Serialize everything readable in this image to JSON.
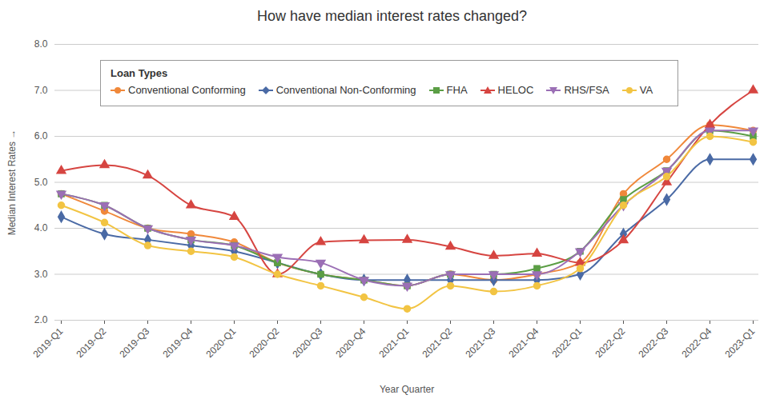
{
  "chart_data": {
    "type": "line",
    "title": "How have median interest rates changed?",
    "x_label": "Year Quarter",
    "y_label": "Median Interest Rates",
    "legend_title": "Loan Types",
    "legend": "top-left",
    "grid": true,
    "ylim": [
      2,
      8
    ],
    "yticks": [
      2,
      3,
      4,
      5,
      6,
      7,
      8
    ],
    "categories": [
      "2019-Q1",
      "2019-Q2",
      "2019-Q3",
      "2019-Q4",
      "2020-Q1",
      "2020-Q2",
      "2020-Q3",
      "2020-Q4",
      "2021-Q1",
      "2021-Q2",
      "2021-Q3",
      "2021-Q4",
      "2022-Q1",
      "2022-Q2",
      "2022-Q3",
      "2022-Q4",
      "2023-Q1"
    ],
    "series": [
      {
        "name": "Conventional Conforming",
        "color": "#f0883a",
        "marker": "circle",
        "values": [
          4.75,
          4.375,
          4.0,
          3.875,
          3.7,
          3.25,
          3.0,
          2.875,
          2.75,
          3.0,
          2.875,
          3.0,
          3.25,
          4.75,
          5.5,
          6.25,
          6.125
        ]
      },
      {
        "name": "Conventional Non-Conforming",
        "color": "#4a6aa5",
        "marker": "diamond",
        "values": [
          4.25,
          3.875,
          3.75,
          3.625,
          3.5,
          3.25,
          3.0,
          2.875,
          2.875,
          2.875,
          2.875,
          2.875,
          3.0,
          3.875,
          4.625,
          5.5,
          5.5
        ]
      },
      {
        "name": "FHA",
        "color": "#5b9e45",
        "marker": "square",
        "values": [
          4.75,
          4.5,
          4.0,
          3.75,
          3.625,
          3.25,
          3.0,
          2.875,
          2.75,
          3.0,
          3.0,
          3.125,
          3.5,
          4.625,
          5.25,
          6.125,
          6.0
        ]
      },
      {
        "name": "HELOC",
        "color": "#d64541",
        "marker": "triangle",
        "values": [
          5.25,
          5.375,
          5.15,
          4.5,
          4.25,
          3.0,
          3.7,
          3.74,
          3.75,
          3.6,
          3.4,
          3.45,
          3.25,
          3.74,
          5.0,
          6.25,
          7.0
        ]
      },
      {
        "name": "RHS/FSA",
        "color": "#9b6fb5",
        "marker": "triangle-down",
        "values": [
          4.75,
          4.5,
          4.0,
          3.75,
          3.625,
          3.375,
          3.25,
          2.875,
          2.75,
          3.0,
          3.0,
          3.0,
          3.5,
          4.5,
          5.25,
          6.125,
          6.125
        ]
      },
      {
        "name": "VA",
        "color": "#f2c443",
        "marker": "circle",
        "values": [
          4.5,
          4.125,
          3.625,
          3.5,
          3.375,
          3.0,
          2.75,
          2.5,
          2.25,
          2.75,
          2.625,
          2.75,
          3.125,
          4.5,
          5.125,
          6.0,
          5.875
        ]
      }
    ]
  }
}
